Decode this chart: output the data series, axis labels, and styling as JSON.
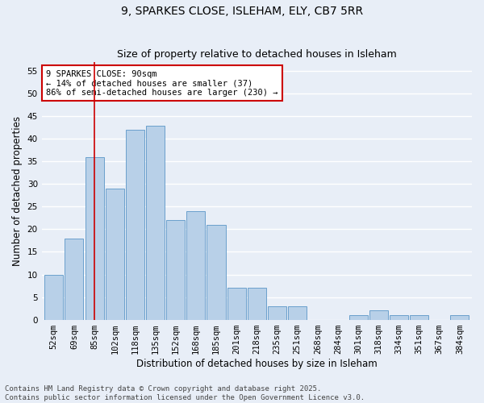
{
  "title1": "9, SPARKES CLOSE, ISLEHAM, ELY, CB7 5RR",
  "title2": "Size of property relative to detached houses in Isleham",
  "xlabel": "Distribution of detached houses by size in Isleham",
  "ylabel": "Number of detached properties",
  "categories": [
    "52sqm",
    "69sqm",
    "85sqm",
    "102sqm",
    "118sqm",
    "135sqm",
    "152sqm",
    "168sqm",
    "185sqm",
    "201sqm",
    "218sqm",
    "235sqm",
    "251sqm",
    "268sqm",
    "284sqm",
    "301sqm",
    "318sqm",
    "334sqm",
    "351sqm",
    "367sqm",
    "384sqm"
  ],
  "values": [
    10,
    18,
    36,
    29,
    42,
    43,
    22,
    24,
    21,
    7,
    7,
    3,
    3,
    0,
    0,
    1,
    2,
    1,
    1,
    0,
    1
  ],
  "bar_color": "#b8d0e8",
  "bar_edge_color": "#6aa0cc",
  "vline_x": 2,
  "vline_color": "#cc0000",
  "annotation_text": "9 SPARKES CLOSE: 90sqm\n← 14% of detached houses are smaller (37)\n86% of semi-detached houses are larger (230) →",
  "annotation_box_color": "#ffffff",
  "annotation_box_edge": "#cc0000",
  "ylim": [
    0,
    57
  ],
  "yticks": [
    0,
    5,
    10,
    15,
    20,
    25,
    30,
    35,
    40,
    45,
    50,
    55
  ],
  "background_color": "#e8eef7",
  "grid_color": "#ffffff",
  "footer": "Contains HM Land Registry data © Crown copyright and database right 2025.\nContains public sector information licensed under the Open Government Licence v3.0.",
  "title_fontsize": 10,
  "subtitle_fontsize": 9,
  "axis_label_fontsize": 8.5,
  "tick_fontsize": 7.5,
  "annotation_fontsize": 7.5,
  "footer_fontsize": 6.5
}
